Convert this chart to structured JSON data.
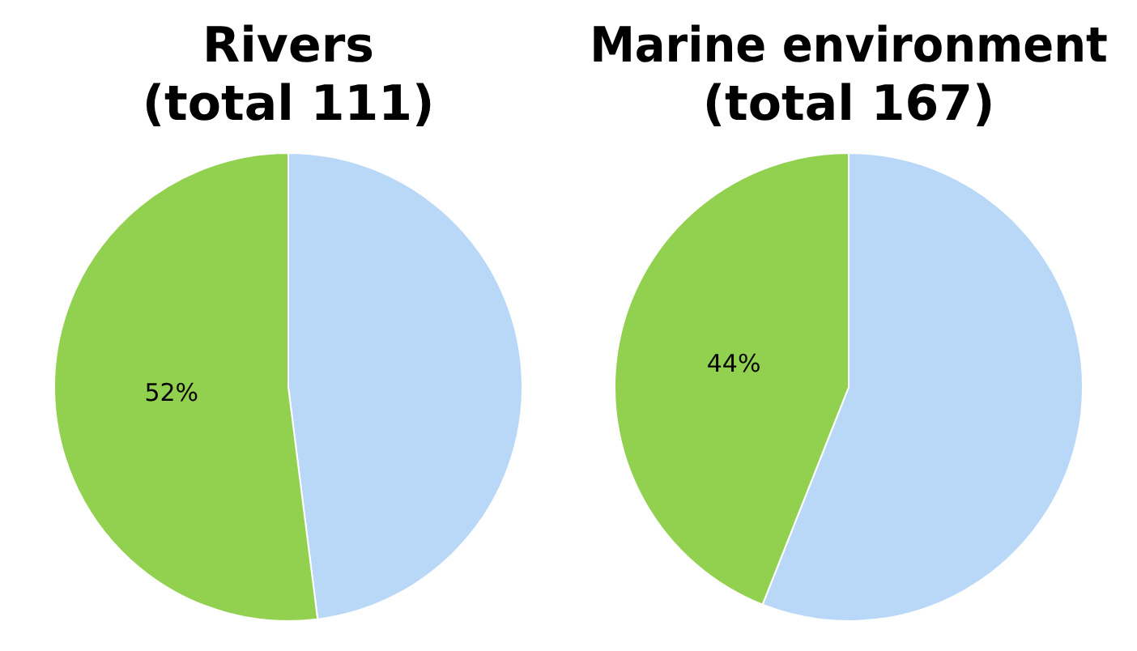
{
  "chart_data": [
    {
      "type": "pie",
      "title": "Rivers",
      "subtitle": "(total 111)",
      "categories": [
        null,
        null
      ],
      "values": [
        48,
        52
      ],
      "colors": [
        "#b9d8f8",
        "#92d050"
      ],
      "value_labels": [
        null,
        "52%"
      ]
    },
    {
      "type": "pie",
      "title": "Marine environment",
      "subtitle": "(total 167)",
      "categories": [
        null,
        null
      ],
      "values": [
        56,
        44
      ],
      "colors": [
        "#b9d8f8",
        "#92d050"
      ],
      "value_labels": [
        null,
        "44%"
      ]
    }
  ]
}
